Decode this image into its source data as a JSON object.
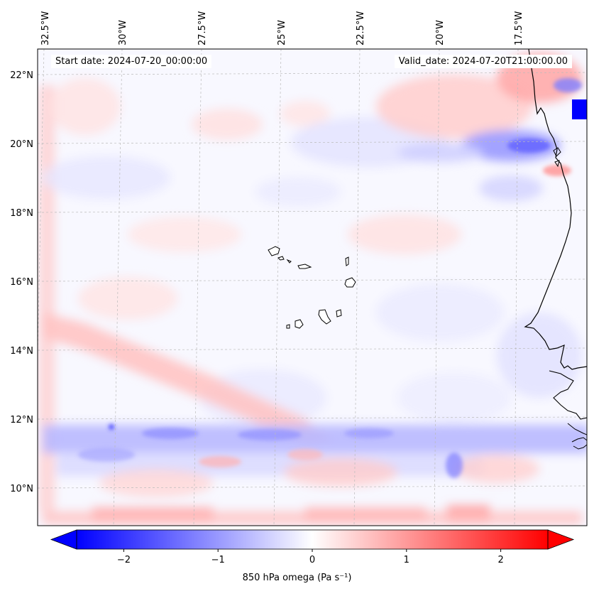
{
  "map": {
    "start_date": "Start date: 2024-07-20_00:00:00",
    "valid_date": "Valid_date: 2024-07-20T21:00:00.00",
    "lon_labels": [
      "32.5°W",
      "30°W",
      "27.5°W",
      "25°W",
      "22.5°W",
      "20°W",
      "17.5°W"
    ],
    "lat_labels": [
      "22°N",
      "20°N",
      "18°N",
      "16°N",
      "14°N",
      "12°N",
      "10°N"
    ],
    "lon_values": [
      -32.5,
      -30,
      -27.5,
      -25,
      -22.5,
      -20,
      -17.5
    ],
    "lat_values": [
      22,
      20,
      18,
      16,
      14,
      12,
      10
    ],
    "extent": {
      "lon_min": -32.7,
      "lon_max": -15.5,
      "lat_min": 8.9,
      "lat_max": 22.8
    }
  },
  "colorbar": {
    "label": "850 hPa omega (Pa s⁻¹)",
    "ticks": [
      "−2",
      "−1",
      "0",
      "1",
      "2"
    ],
    "tick_values": [
      -2,
      -1,
      0,
      1,
      2
    ],
    "range": [
      -2.5,
      2.5
    ],
    "colormap": "bwr",
    "extend": "both",
    "low_color": "#0000ff",
    "mid_color": "#ffffff",
    "high_color": "#ff0000"
  },
  "colors": {
    "coastline": "#000000",
    "gridline": "#bbbbbb"
  }
}
